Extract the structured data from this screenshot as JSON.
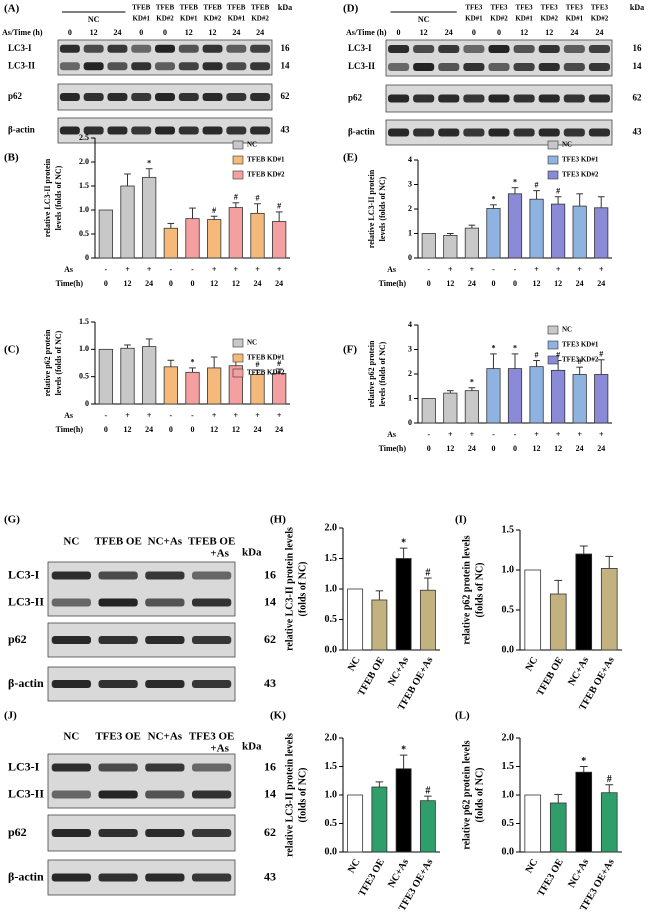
{
  "panels": [
    {
      "label": "(A)",
      "header_label": "As/Time (h)",
      "group": "NC",
      "lane_names": [
        [
          "TFEB",
          "KD#1"
        ],
        [
          "TFEB",
          "KD#2"
        ],
        [
          "TFEB",
          "KD#1"
        ],
        [
          "TFEB",
          "KD#2"
        ],
        [
          "TFEB",
          "KD#1"
        ],
        [
          "TFEB",
          "KD#2"
        ]
      ],
      "times": [
        0,
        12,
        24,
        0,
        0,
        12,
        12,
        24,
        24
      ],
      "kda_label": "kDa",
      "rows": [
        {
          "names": [
            "LC3-I",
            "LC3-II"
          ],
          "kda": [
            16,
            14
          ]
        },
        {
          "names": [
            "p62"
          ],
          "kda": [
            62
          ]
        },
        {
          "names": [
            "β-actin"
          ],
          "kda": [
            43
          ]
        }
      ]
    },
    {
      "label": "(D)",
      "header_label": "As/Time (h)",
      "group": "NC",
      "lane_names": [
        [
          "TFE3",
          "KD#1"
        ],
        [
          "TFE3",
          "KD#2"
        ],
        [
          "TFE3",
          "KD#1"
        ],
        [
          "TFE3",
          "KD#2"
        ],
        [
          "TFE3",
          "KD#1"
        ],
        [
          "TFE3",
          "KD#2"
        ]
      ],
      "times": [
        0,
        12,
        24,
        0,
        0,
        12,
        12,
        24,
        24
      ],
      "kda_label": "kDa",
      "rows": [
        {
          "names": [
            "LC3-I",
            "LC3-II"
          ],
          "kda": [
            16,
            14
          ]
        },
        {
          "names": [
            "p62"
          ],
          "kda": [
            62
          ]
        },
        {
          "names": [
            "β-actin"
          ],
          "kda": [
            43
          ]
        }
      ]
    },
    {
      "label": "(G)",
      "columns": [
        [
          "NC"
        ],
        [
          "TFEB OE"
        ],
        [
          "NC+As"
        ],
        [
          "TFEB OE",
          "+As"
        ]
      ],
      "kda_label": "kDa",
      "rows": [
        {
          "names": [
            "LC3-I",
            "LC3-II"
          ],
          "kda": [
            16,
            14
          ]
        },
        {
          "names": [
            "p62"
          ],
          "kda": [
            62
          ]
        },
        {
          "names": [
            "β-actin"
          ],
          "kda": [
            43
          ]
        }
      ]
    },
    {
      "label": "(J)",
      "columns": [
        [
          "NC"
        ],
        [
          "TFE3 OE"
        ],
        [
          "NC+As"
        ],
        [
          "TFE3 OE",
          "+As"
        ]
      ],
      "kda_label": "kDa",
      "rows": [
        {
          "names": [
            "LC3-I",
            "LC3-II"
          ],
          "kda": [
            16,
            14
          ]
        },
        {
          "names": [
            "p62"
          ],
          "kda": [
            62
          ]
        },
        {
          "names": [
            "β-actin"
          ],
          "kda": [
            43
          ]
        }
      ]
    }
  ],
  "chart_data": [
    {
      "type": "bar",
      "label": "(B)",
      "y_label": [
        "relative LC3-II protein",
        "levels (folds of NC)"
      ],
      "ylim": [
        0,
        2.5
      ],
      "yticks": [
        0,
        0.5,
        {
          "value": 1,
          "label": "1.0"
        },
        1.5,
        {
          "value": 2,
          "label": "2.0"
        },
        2.5
      ],
      "series": [
        {
          "name": "NC",
          "color": "#c8c8c8",
          "values": [
            1.0,
            1.5,
            1.68,
            null,
            null,
            null,
            null,
            null,
            null
          ],
          "errors": [
            null,
            0.25,
            0.18,
            null,
            null,
            null,
            null,
            null,
            null
          ]
        },
        {
          "name": "TFEB KD#1",
          "color": "#f5b97a",
          "values": [
            null,
            null,
            null,
            0.62,
            null,
            0.8,
            null,
            0.93,
            null
          ],
          "errors": [
            null,
            null,
            null,
            0.1,
            null,
            0.07,
            null,
            0.2,
            null
          ]
        },
        {
          "name": "TFEB KD#2",
          "color": "#f4a0a0",
          "values": [
            null,
            null,
            null,
            null,
            0.82,
            null,
            1.05,
            null,
            0.76
          ],
          "errors": [
            null,
            null,
            null,
            null,
            0.22,
            null,
            0.1,
            null,
            0.2
          ]
        }
      ],
      "annotations": [
        null,
        null,
        "*",
        null,
        null,
        "#",
        "#",
        "#",
        "#"
      ],
      "as_label": "As",
      "as_row": [
        "-",
        "+",
        "+",
        "-",
        "-",
        "+",
        "+",
        "+",
        "+"
      ],
      "time_label": "Time(h)",
      "time_row": [
        0,
        12,
        24,
        0,
        0,
        12,
        12,
        24,
        24
      ]
    },
    {
      "type": "bar",
      "label": "(C)",
      "y_label": [
        "relative p62 protein",
        "levels (folds of NC)"
      ],
      "ylim": [
        0,
        1.5
      ],
      "yticks": [
        0,
        0.5,
        {
          "value": 1,
          "label": "1.0"
        },
        1.5
      ],
      "series": [
        {
          "name": "NC",
          "color": "#c8c8c8",
          "values": [
            1.0,
            1.02,
            1.05,
            null,
            null,
            null,
            null,
            null,
            null
          ],
          "errors": [
            null,
            0.06,
            0.14,
            null,
            null,
            null,
            null,
            null,
            null
          ]
        },
        {
          "name": "TFEB KD#1",
          "color": "#f5b97a",
          "values": [
            null,
            null,
            null,
            0.68,
            null,
            0.66,
            null,
            0.54,
            null
          ],
          "errors": [
            null,
            null,
            null,
            0.12,
            null,
            0.2,
            null,
            0.08,
            null
          ]
        },
        {
          "name": "TFEB KD#2",
          "color": "#f4a0a0",
          "values": [
            null,
            null,
            null,
            null,
            0.58,
            null,
            0.7,
            null,
            0.56
          ],
          "errors": [
            null,
            null,
            null,
            null,
            0.08,
            null,
            0.18,
            null,
            0.08
          ]
        }
      ],
      "annotations": [
        null,
        null,
        null,
        null,
        "*",
        null,
        null,
        "#",
        "#"
      ],
      "as_label": "As",
      "as_row": [
        "-",
        "+",
        "+",
        "-",
        "-",
        "+",
        "+",
        "+",
        "+"
      ],
      "time_label": "Time(h)",
      "time_row": [
        0,
        12,
        24,
        0,
        0,
        12,
        12,
        24,
        24
      ]
    },
    {
      "type": "bar",
      "label": "(E)",
      "y_label": [
        "relative LC3-II protein",
        "levels (folds of NC)"
      ],
      "ylim": [
        0,
        4
      ],
      "yticks": [
        0,
        1,
        2,
        3,
        4
      ],
      "series": [
        {
          "name": "NC",
          "color": "#c8c8c8",
          "values": [
            1.0,
            0.92,
            1.22,
            null,
            null,
            null,
            null,
            null,
            null
          ],
          "errors": [
            null,
            0.08,
            0.12,
            null,
            null,
            null,
            null,
            null,
            null
          ]
        },
        {
          "name": "TFE3 KD#1",
          "color": "#8fb3e0",
          "values": [
            null,
            null,
            null,
            2.02,
            null,
            2.4,
            null,
            2.12,
            null
          ],
          "errors": [
            null,
            null,
            null,
            0.15,
            null,
            0.35,
            null,
            0.5,
            null
          ]
        },
        {
          "name": "TFE3 KD#2",
          "color": "#8a8ad6",
          "values": [
            null,
            null,
            null,
            null,
            2.62,
            null,
            2.2,
            null,
            2.05
          ],
          "errors": [
            null,
            null,
            null,
            null,
            0.25,
            null,
            0.3,
            null,
            0.45
          ]
        }
      ],
      "annotations": [
        null,
        null,
        null,
        "*",
        "*",
        "#",
        "#",
        null,
        null
      ],
      "as_label": "As",
      "as_row": [
        "-",
        "+",
        "+",
        "-",
        "-",
        "+",
        "+",
        "+",
        "+"
      ],
      "time_label": "Time(h)",
      "time_row": [
        0,
        12,
        24,
        0,
        0,
        12,
        12,
        24,
        24
      ]
    },
    {
      "type": "bar",
      "label": "(F)",
      "y_label": [
        "relative p62 protein",
        "levels (folds of NC)"
      ],
      "ylim": [
        0,
        4
      ],
      "yticks": [
        0,
        1,
        2,
        3,
        4
      ],
      "series": [
        {
          "name": "NC",
          "color": "#c8c8c8",
          "values": [
            1.0,
            1.22,
            1.32,
            null,
            null,
            null,
            null,
            null,
            null
          ],
          "errors": [
            null,
            0.1,
            0.12,
            null,
            null,
            null,
            null,
            null,
            null
          ]
        },
        {
          "name": "TFE3 KD#1",
          "color": "#8fb3e0",
          "values": [
            null,
            null,
            null,
            2.22,
            null,
            2.3,
            null,
            1.98,
            null
          ],
          "errors": [
            null,
            null,
            null,
            0.6,
            null,
            0.25,
            null,
            0.3,
            null
          ]
        },
        {
          "name": "TFE3 KD#2",
          "color": "#8a8ad6",
          "values": [
            null,
            null,
            null,
            null,
            2.22,
            null,
            2.15,
            null,
            1.98
          ],
          "errors": [
            null,
            null,
            null,
            null,
            0.6,
            null,
            0.4,
            null,
            0.6
          ]
        }
      ],
      "annotations": [
        null,
        null,
        "*",
        "*",
        "*",
        "#",
        "#",
        "#",
        "#"
      ],
      "as_label": "As",
      "as_row": [
        "-",
        "+",
        "+",
        "-",
        "-",
        "+",
        "+",
        "+",
        "+"
      ],
      "time_label": "Time(h)",
      "time_row": [
        0,
        12,
        24,
        0,
        0,
        12,
        12,
        24,
        24
      ]
    },
    {
      "type": "bar",
      "label": "(H)",
      "y_label": [
        "relative LC3-II protein levels",
        "(folds of NC)"
      ],
      "ylim": [
        0,
        2
      ],
      "yticks": [
        {
          "value": 0,
          "label": "0.0"
        },
        0.5,
        {
          "value": 1,
          "label": "1.0"
        },
        1.5,
        {
          "value": 2,
          "label": "2.0"
        }
      ],
      "categories": [
        "NC",
        "TFEB OE",
        "NC+As",
        "TFEB OE+As"
      ],
      "values": [
        1.0,
        0.82,
        1.5,
        0.98
      ],
      "errors": [
        null,
        0.15,
        0.17,
        0.2
      ],
      "colors": [
        "#ffffff",
        "#c2b280",
        "#000000",
        "#c2b280"
      ],
      "annotations": [
        null,
        null,
        "*",
        "#"
      ]
    },
    {
      "type": "bar",
      "label": "(I)",
      "y_label": [
        "relative p62 protein levels",
        "(folds of NC)"
      ],
      "ylim": [
        0,
        1.5
      ],
      "yticks": [
        {
          "value": 0,
          "label": "0.0"
        },
        0.5,
        {
          "value": 1,
          "label": "1.0"
        },
        1.5
      ],
      "categories": [
        "NC",
        "TFEB OE",
        "NC+As",
        "TFEB OE+As"
      ],
      "values": [
        1.0,
        0.7,
        1.2,
        1.02
      ],
      "errors": [
        null,
        0.17,
        0.1,
        0.15
      ],
      "colors": [
        "#ffffff",
        "#c2b280",
        "#000000",
        "#c2b280"
      ]
    },
    {
      "type": "bar",
      "label": "(K)",
      "y_label": [
        "relative LC3-II protein levels",
        "(folds of NC)"
      ],
      "ylim": [
        0,
        2
      ],
      "yticks": [
        {
          "value": 0,
          "label": "0.0"
        },
        0.5,
        {
          "value": 1,
          "label": "1.0"
        },
        1.5,
        {
          "value": 2,
          "label": "2.0"
        }
      ],
      "categories": [
        "NC",
        "TFE3 OE",
        "NC+As",
        "TFE3 OE+As"
      ],
      "values": [
        1.0,
        1.14,
        1.46,
        0.9
      ],
      "errors": [
        null,
        0.09,
        0.24,
        0.08
      ],
      "colors": [
        "#ffffff",
        "#2f9e6b",
        "#000000",
        "#2f9e6b"
      ],
      "annotations": [
        null,
        null,
        "*",
        "#"
      ]
    },
    {
      "type": "bar",
      "label": "(L)",
      "y_label": [
        "relative p62 protein levels",
        "(folds of NC)"
      ],
      "ylim": [
        0,
        2
      ],
      "yticks": [
        {
          "value": 0,
          "label": "0.0"
        },
        0.5,
        {
          "value": 1,
          "label": "1.0"
        },
        1.5,
        {
          "value": 2,
          "label": "2.0"
        }
      ],
      "categories": [
        "NC",
        "TFE3 OE",
        "NC+As",
        "TFE3 OE+As"
      ],
      "values": [
        1.0,
        0.86,
        1.4,
        1.04
      ],
      "errors": [
        null,
        0.15,
        0.1,
        0.14
      ],
      "colors": [
        "#ffffff",
        "#2f9e6b",
        "#000000",
        "#2f9e6b"
      ],
      "annotations": [
        null,
        null,
        "*",
        "#"
      ]
    }
  ]
}
